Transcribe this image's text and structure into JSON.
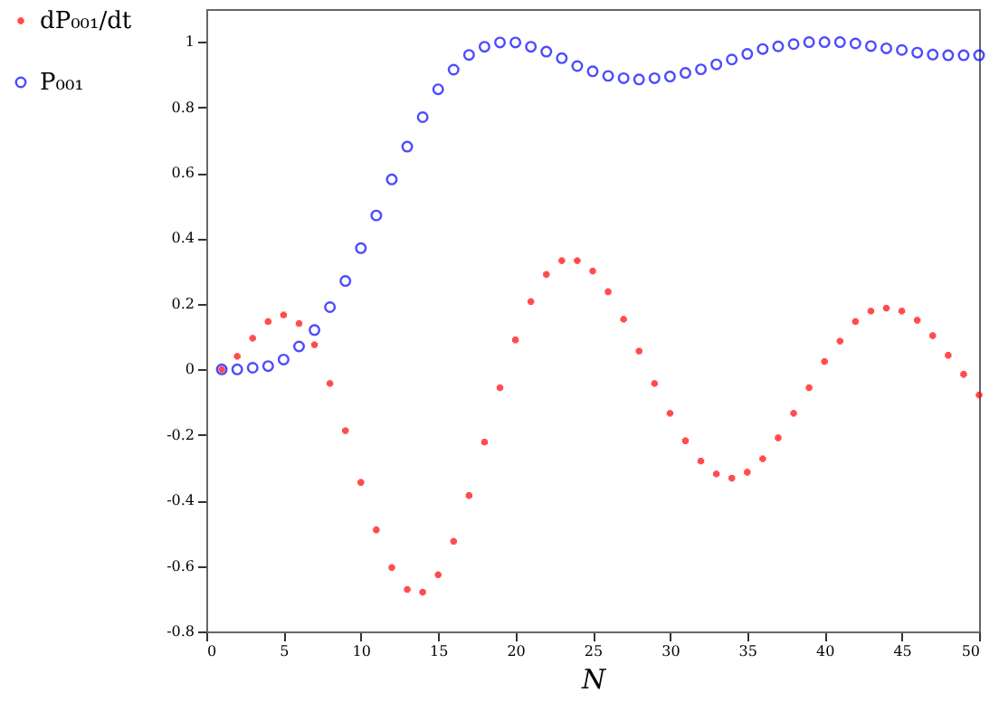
{
  "chart_data": {
    "type": "scatter",
    "xlabel": "N",
    "x": [
      1,
      2,
      3,
      4,
      5,
      6,
      7,
      8,
      9,
      10,
      11,
      12,
      13,
      14,
      15,
      16,
      17,
      18,
      19,
      20,
      21,
      22,
      23,
      24,
      25,
      26,
      27,
      28,
      29,
      30,
      31,
      32,
      33,
      34,
      35,
      36,
      37,
      38,
      39,
      40,
      41,
      42,
      43,
      44,
      45,
      46,
      47,
      48,
      49,
      50
    ],
    "series": [
      {
        "name": "dP₀₀₁/dt",
        "color": "#ff0000",
        "marker": "cross",
        "values": [
          0,
          0.04,
          0.095,
          0.146,
          0.166,
          0.14,
          0.075,
          -0.043,
          -0.187,
          -0.345,
          -0.49,
          -0.605,
          -0.672,
          -0.68,
          -0.627,
          -0.525,
          -0.385,
          -0.222,
          -0.056,
          0.09,
          0.207,
          0.29,
          0.332,
          0.332,
          0.3,
          0.237,
          0.153,
          0.056,
          -0.043,
          -0.134,
          -0.218,
          -0.28,
          -0.319,
          -0.332,
          -0.314,
          -0.273,
          -0.209,
          -0.134,
          -0.056,
          0.024,
          0.086,
          0.146,
          0.178,
          0.187,
          0.178,
          0.15,
          0.103,
          0.043,
          -0.015,
          -0.078
        ]
      },
      {
        "name": "P₀₀₁",
        "color": "#0000ff",
        "marker": "circle",
        "values": [
          0,
          0,
          0.005,
          0.01,
          0.03,
          0.07,
          0.12,
          0.19,
          0.27,
          0.37,
          0.47,
          0.58,
          0.68,
          0.77,
          0.855,
          0.915,
          0.96,
          0.985,
          0.998,
          0.998,
          0.985,
          0.97,
          0.95,
          0.926,
          0.91,
          0.896,
          0.889,
          0.885,
          0.889,
          0.894,
          0.905,
          0.916,
          0.931,
          0.946,
          0.963,
          0.978,
          0.986,
          0.993,
          0.999,
          0.999,
          0.999,
          0.995,
          0.987,
          0.98,
          0.975,
          0.967,
          0.961,
          0.959,
          0.959,
          0.959
        ]
      }
    ],
    "xlim": [
      0,
      50
    ],
    "xticks": [
      0,
      5,
      10,
      15,
      20,
      25,
      30,
      35,
      40,
      45,
      50
    ],
    "ylim": [
      -0.8,
      1.1
    ],
    "yticks": [
      -0.8,
      -0.6,
      -0.4,
      -0.2,
      0,
      0.2,
      0.4,
      0.6,
      0.8,
      1
    ],
    "grid": false,
    "legend": "left"
  }
}
